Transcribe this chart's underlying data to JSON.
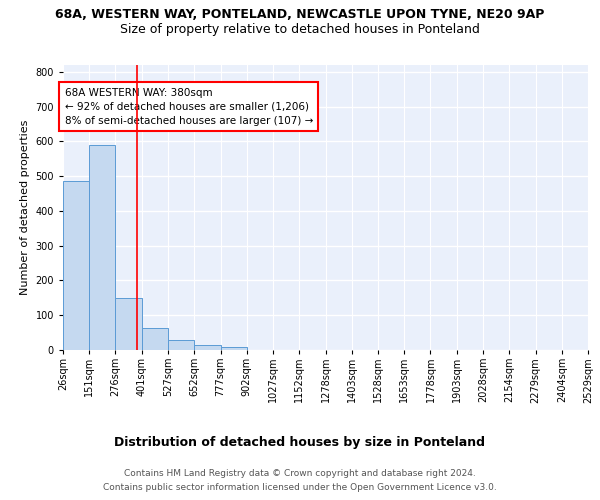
{
  "title1": "68A, WESTERN WAY, PONTELAND, NEWCASTLE UPON TYNE, NE20 9AP",
  "title2": "Size of property relative to detached houses in Ponteland",
  "xlabel": "Distribution of detached houses by size in Ponteland",
  "ylabel": "Number of detached properties",
  "bar_values": [
    487,
    591,
    150,
    63,
    29,
    13,
    8,
    0,
    0,
    0,
    0,
    0,
    0,
    0,
    0,
    0,
    0,
    0,
    0,
    0
  ],
  "bin_edges": [
    26,
    151,
    276,
    401,
    527,
    652,
    777,
    902,
    1027,
    1152,
    1278,
    1403,
    1528,
    1653,
    1778,
    1903,
    2028,
    2154,
    2279,
    2404,
    2529
  ],
  "tick_labels": [
    "26sqm",
    "151sqm",
    "276sqm",
    "401sqm",
    "527sqm",
    "652sqm",
    "777sqm",
    "902sqm",
    "1027sqm",
    "1152sqm",
    "1278sqm",
    "1403sqm",
    "1528sqm",
    "1653sqm",
    "1778sqm",
    "1903sqm",
    "2028sqm",
    "2154sqm",
    "2279sqm",
    "2404sqm",
    "2529sqm"
  ],
  "bar_color": "#c5d9f0",
  "bar_edge_color": "#5b9bd5",
  "property_line_x": 380,
  "property_line_color": "red",
  "annotation_text": "68A WESTERN WAY: 380sqm\n← 92% of detached houses are smaller (1,206)\n8% of semi-detached houses are larger (107) →",
  "annotation_box_color": "white",
  "annotation_box_edge": "red",
  "ylim": [
    0,
    820
  ],
  "yticks": [
    0,
    100,
    200,
    300,
    400,
    500,
    600,
    700,
    800
  ],
  "footer1": "Contains HM Land Registry data © Crown copyright and database right 2024.",
  "footer2": "Contains public sector information licensed under the Open Government Licence v3.0.",
  "bg_color": "#eaf0fb",
  "grid_color": "white",
  "title1_fontsize": 9,
  "title2_fontsize": 9,
  "xlabel_fontsize": 9,
  "ylabel_fontsize": 8,
  "tick_fontsize": 7,
  "annotation_fontsize": 7.5,
  "footer_fontsize": 6.5
}
